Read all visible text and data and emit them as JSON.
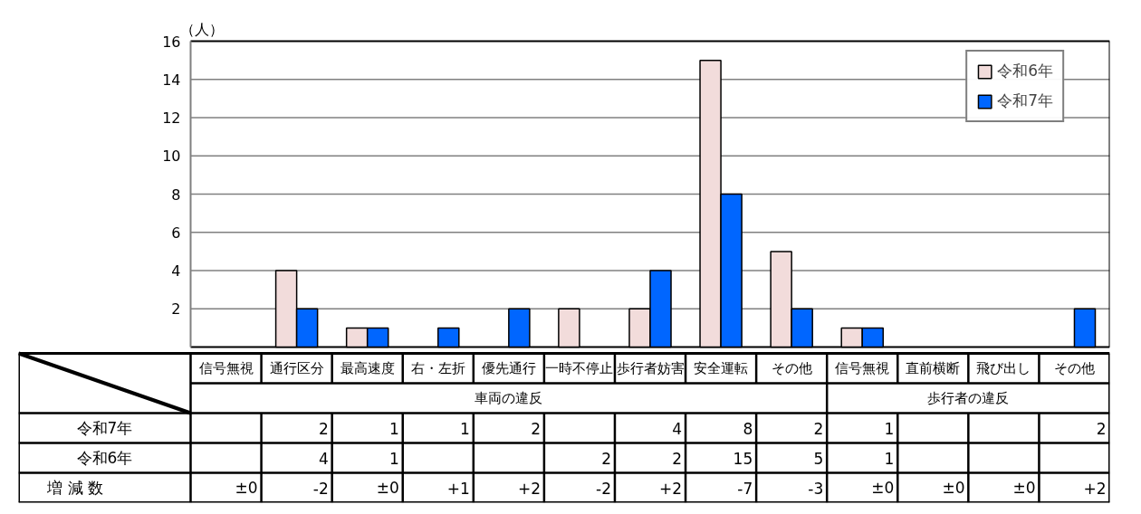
{
  "chart_data": {
    "type": "bar",
    "ylabel": "（人）",
    "categories": [
      "信号無視",
      "通行区分",
      "最高速度",
      "右・左折",
      "優先通行",
      "一時不停止",
      "歩行者妨害",
      "安全運転",
      "その他",
      "信号無視",
      "直前横断",
      "飛び出し",
      "その他"
    ],
    "series": [
      {
        "name": "令和6年",
        "color": "#f2dcdb",
        "values": [
          null,
          4,
          1,
          null,
          null,
          2,
          2,
          15,
          5,
          1,
          null,
          null,
          null
        ]
      },
      {
        "name": "令和7年",
        "color": "#0066ff",
        "values": [
          null,
          2,
          1,
          1,
          2,
          null,
          4,
          8,
          2,
          1,
          null,
          null,
          2
        ]
      }
    ],
    "ylim": [
      0,
      16
    ],
    "yticks": [
      2,
      4,
      6,
      8,
      10,
      12,
      14,
      16
    ],
    "grid": "y",
    "legend": "top right",
    "data_labels": true,
    "annotations": [
      "車両の違反",
      "歩行者の違反",
      "増減数",
      "±0",
      "-2",
      "±0",
      "+1",
      "+2",
      "-2",
      "+2",
      "-7",
      "-3",
      "±0",
      "±0",
      "±0",
      "+2"
    ]
  }
}
